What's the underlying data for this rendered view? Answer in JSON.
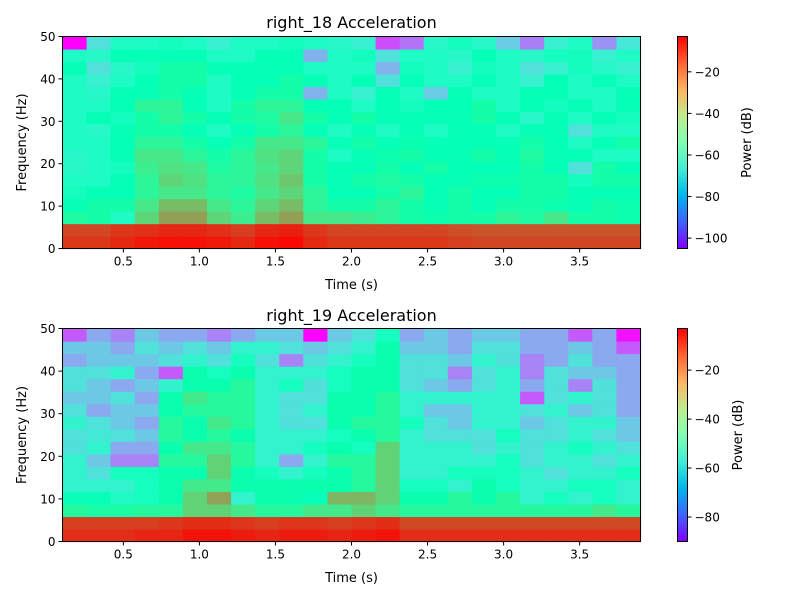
{
  "chart_data": [
    {
      "type": "heatmap",
      "title": "right_18 Acceleration",
      "xlabel": "Time (s)",
      "ylabel": "Frequency (Hz)",
      "xlim": [
        0.1,
        3.9
      ],
      "ylim": [
        0,
        50
      ],
      "x_ticks": [
        0.5,
        1.0,
        1.5,
        2.0,
        2.5,
        3.0,
        3.5
      ],
      "x_tick_labels": [
        "0.5",
        "1.0",
        "1.5",
        "2.0",
        "2.5",
        "3.0",
        "3.5"
      ],
      "y_ticks": [
        0,
        10,
        20,
        30,
        40,
        50
      ],
      "y_tick_labels": [
        "0",
        "10",
        "20",
        "30",
        "40",
        "50"
      ],
      "colorbar": {
        "label": "Power (dB)",
        "range": [
          -105,
          -3
        ],
        "ticks": [
          -20,
          -40,
          -60,
          -80,
          -100
        ],
        "tick_labels": [
          "−20",
          "−40",
          "−60",
          "−80",
          "−100"
        ]
      },
      "colormap": "rainbow",
      "grid": false,
      "time_bins": 24,
      "freq_bins": 17,
      "values_db_rows_low_to_high_freq": [
        [
          -10,
          -10,
          -8,
          -6,
          -5,
          -5,
          -6,
          -8,
          -5,
          -4,
          -8,
          -10,
          -10,
          -10,
          -10,
          -10,
          -11,
          -12,
          -12,
          -12,
          -12,
          -12,
          -12,
          -12
        ],
        [
          -12,
          -12,
          -10,
          -9,
          -8,
          -8,
          -9,
          -11,
          -8,
          -7,
          -10,
          -12,
          -12,
          -12,
          -12,
          -12,
          -13,
          -14,
          -14,
          -14,
          -14,
          -14,
          -14,
          -14
        ],
        [
          -48,
          -50,
          -60,
          -35,
          -25,
          -25,
          -35,
          -42,
          -30,
          -25,
          -40,
          -40,
          -42,
          -45,
          -50,
          -52,
          -50,
          -50,
          -45,
          -48,
          -40,
          -50,
          -50,
          -52
        ],
        [
          -55,
          -50,
          -50,
          -40,
          -30,
          -30,
          -40,
          -45,
          -35,
          -30,
          -45,
          -50,
          -50,
          -45,
          -50,
          -55,
          -50,
          -55,
          -50,
          -50,
          -52,
          -55,
          -50,
          -52
        ],
        [
          -58,
          -55,
          -55,
          -45,
          -40,
          -40,
          -45,
          -48,
          -40,
          -35,
          -45,
          -55,
          -55,
          -50,
          -45,
          -55,
          -50,
          -55,
          -55,
          -50,
          -50,
          -55,
          -55,
          -55
        ],
        [
          -60,
          -60,
          -55,
          -45,
          -35,
          -38,
          -45,
          -45,
          -38,
          -32,
          -50,
          -55,
          -50,
          -48,
          -50,
          -55,
          -55,
          -52,
          -52,
          -50,
          -50,
          -58,
          -50,
          -50
        ],
        [
          -62,
          -60,
          -58,
          -42,
          -38,
          -40,
          -48,
          -45,
          -40,
          -35,
          -50,
          -55,
          -55,
          -50,
          -55,
          -50,
          -55,
          -55,
          -55,
          -50,
          -55,
          -70,
          -50,
          -55
        ],
        [
          -62,
          -60,
          -55,
          -40,
          -40,
          -45,
          -50,
          -45,
          -38,
          -35,
          -50,
          -60,
          -55,
          -52,
          -50,
          -55,
          -55,
          -50,
          -55,
          -48,
          -55,
          -55,
          -60,
          -60
        ],
        [
          -60,
          -60,
          -55,
          -45,
          -45,
          -50,
          -55,
          -50,
          -40,
          -40,
          -45,
          -55,
          -50,
          -55,
          -52,
          -55,
          -55,
          -55,
          -55,
          -50,
          -55,
          -60,
          -55,
          -50
        ],
        [
          -60,
          -62,
          -55,
          -50,
          -50,
          -55,
          -60,
          -55,
          -50,
          -45,
          -55,
          -60,
          -55,
          -60,
          -55,
          -60,
          -55,
          -55,
          -60,
          -55,
          -55,
          -70,
          -60,
          -60
        ],
        [
          -60,
          -55,
          -58,
          -50,
          -45,
          -50,
          -55,
          -50,
          -48,
          -40,
          -50,
          -55,
          -50,
          -55,
          -55,
          -55,
          -55,
          -50,
          -55,
          -62,
          -55,
          -60,
          -55,
          -58
        ],
        [
          -60,
          -60,
          -55,
          -45,
          -45,
          -55,
          -60,
          -50,
          -45,
          -45,
          -55,
          -55,
          -60,
          -55,
          -58,
          -55,
          -55,
          -50,
          -60,
          -55,
          -58,
          -55,
          -60,
          -55
        ],
        [
          -60,
          -62,
          -55,
          -55,
          -50,
          -55,
          -60,
          -55,
          -50,
          -50,
          -80,
          -60,
          -65,
          -55,
          -60,
          -75,
          -55,
          -60,
          -60,
          -55,
          -55,
          -60,
          -60,
          -55
        ],
        [
          -60,
          -65,
          -60,
          -55,
          -50,
          -50,
          -60,
          -55,
          -55,
          -50,
          -55,
          -60,
          -55,
          -70,
          -55,
          -60,
          -60,
          -55,
          -60,
          -65,
          -55,
          -60,
          -55,
          -60
        ],
        [
          -55,
          -70,
          -62,
          -58,
          -50,
          -50,
          -55,
          -55,
          -55,
          -55,
          -60,
          -60,
          -60,
          -80,
          -58,
          -60,
          -65,
          -58,
          -60,
          -70,
          -65,
          -58,
          -62,
          -65
        ],
        [
          -60,
          -62,
          -55,
          -55,
          -55,
          -55,
          -60,
          -60,
          -55,
          -55,
          -80,
          -60,
          -58,
          -70,
          -60,
          -60,
          -62,
          -55,
          -60,
          -62,
          -58,
          -58,
          -65,
          -60
        ],
        [
          -105,
          -70,
          -60,
          -60,
          -58,
          -60,
          -65,
          -60,
          -60,
          -58,
          -60,
          -62,
          -65,
          -95,
          -90,
          -62,
          -58,
          -62,
          -75,
          -88,
          -65,
          -60,
          -85,
          -68
        ]
      ]
    },
    {
      "type": "heatmap",
      "title": "right_19 Acceleration",
      "xlabel": "Time (s)",
      "ylabel": "Frequency (Hz)",
      "xlim": [
        0.1,
        3.9
      ],
      "ylim": [
        0,
        50
      ],
      "x_ticks": [
        0.5,
        1.0,
        1.5,
        2.0,
        2.5,
        3.0,
        3.5
      ],
      "x_tick_labels": [
        "0.5",
        "1.0",
        "1.5",
        "2.0",
        "2.5",
        "3.0",
        "3.5"
      ],
      "y_ticks": [
        0,
        10,
        20,
        30,
        40,
        50
      ],
      "y_tick_labels": [
        "0",
        "10",
        "20",
        "30",
        "40",
        "50"
      ],
      "colorbar": {
        "label": "Power (dB)",
        "range": [
          -90,
          -3
        ],
        "ticks": [
          -20,
          -40,
          -60,
          -80
        ],
        "tick_labels": [
          "−20",
          "−40",
          "−60",
          "−80"
        ]
      },
      "colormap": "rainbow",
      "grid": false,
      "time_bins": 24,
      "freq_bins": 17,
      "values_db_rows_low_to_high_freq": [
        [
          -8,
          -8,
          -8,
          -7,
          -7,
          -5,
          -5,
          -6,
          -7,
          -6,
          -6,
          -7,
          -6,
          -5,
          -8,
          -8,
          -8,
          -8,
          -8,
          -8,
          -8,
          -8,
          -8,
          -8
        ],
        [
          -10,
          -10,
          -10,
          -10,
          -9,
          -8,
          -8,
          -9,
          -10,
          -9,
          -9,
          -10,
          -9,
          -8,
          -11,
          -11,
          -11,
          -11,
          -11,
          -11,
          -11,
          -11,
          -11,
          -11
        ],
        [
          -40,
          -42,
          -42,
          -40,
          -40,
          -30,
          -30,
          -35,
          -40,
          -40,
          -35,
          -35,
          -30,
          -35,
          -40,
          -40,
          -40,
          -40,
          -40,
          -40,
          -40,
          -40,
          -35,
          -40
        ],
        [
          -48,
          -48,
          -52,
          -50,
          -45,
          -30,
          -22,
          -55,
          -45,
          -45,
          -48,
          -25,
          -25,
          -30,
          -45,
          -45,
          -40,
          -45,
          -40,
          -55,
          -50,
          -55,
          -50,
          -55
        ],
        [
          -55,
          -55,
          -55,
          -50,
          -45,
          -35,
          -35,
          -45,
          -45,
          -45,
          -45,
          -45,
          -40,
          -30,
          -50,
          -50,
          -55,
          -45,
          -50,
          -55,
          -55,
          -50,
          -50,
          -55
        ],
        [
          -55,
          -60,
          -50,
          -50,
          -45,
          -45,
          -30,
          -45,
          -50,
          -55,
          -50,
          -45,
          -40,
          -30,
          -55,
          -55,
          -50,
          -50,
          -50,
          -55,
          -60,
          -55,
          -55,
          -50
        ],
        [
          -55,
          -65,
          -75,
          -75,
          -40,
          -40,
          -30,
          -40,
          -55,
          -70,
          -55,
          -40,
          -40,
          -30,
          -55,
          -55,
          -55,
          -55,
          -50,
          -60,
          -55,
          -55,
          -60,
          -55
        ],
        [
          -60,
          -55,
          -70,
          -70,
          -45,
          -35,
          -35,
          -40,
          -55,
          -55,
          -50,
          -45,
          -50,
          -30,
          -55,
          -55,
          -55,
          -60,
          -55,
          -60,
          -55,
          -50,
          -55,
          -60
        ],
        [
          -60,
          -58,
          -60,
          -65,
          -40,
          -45,
          -40,
          -45,
          -55,
          -55,
          -55,
          -50,
          -45,
          -40,
          -55,
          -60,
          -60,
          -60,
          -50,
          -60,
          -60,
          -55,
          -60,
          -65
        ],
        [
          -55,
          -60,
          -65,
          -70,
          -40,
          -45,
          -35,
          -40,
          -55,
          -60,
          -60,
          -45,
          -40,
          -40,
          -50,
          -60,
          -65,
          -55,
          -55,
          -65,
          -60,
          -55,
          -55,
          -65
        ],
        [
          -60,
          -70,
          -65,
          -65,
          -45,
          -40,
          -40,
          -40,
          -55,
          -60,
          -55,
          -45,
          -45,
          -40,
          -55,
          -65,
          -65,
          -55,
          -55,
          -60,
          -55,
          -65,
          -60,
          -70
        ],
        [
          -65,
          -65,
          -60,
          -70,
          -45,
          -35,
          -40,
          -40,
          -55,
          -60,
          -60,
          -45,
          -45,
          -40,
          -55,
          -55,
          -55,
          -55,
          -55,
          -80,
          -60,
          -55,
          -60,
          -70
        ],
        [
          -60,
          -65,
          -70,
          -65,
          -55,
          -45,
          -45,
          -40,
          -55,
          -50,
          -60,
          -50,
          -45,
          -45,
          -60,
          -65,
          -70,
          -60,
          -55,
          -70,
          -60,
          -75,
          -60,
          -70
        ],
        [
          -60,
          -60,
          -55,
          -70,
          -80,
          -45,
          -50,
          -45,
          -55,
          -55,
          -55,
          -50,
          -45,
          -45,
          -60,
          -60,
          -75,
          -60,
          -55,
          -75,
          -60,
          -65,
          -65,
          -70
        ],
        [
          -70,
          -65,
          -65,
          -65,
          -60,
          -55,
          -60,
          -50,
          -60,
          -75,
          -60,
          -55,
          -50,
          -45,
          -60,
          -60,
          -65,
          -55,
          -60,
          -75,
          -70,
          -60,
          -70,
          -70
        ],
        [
          -65,
          -65,
          -70,
          -60,
          -65,
          -60,
          -65,
          -55,
          -55,
          -60,
          -65,
          -60,
          -55,
          -45,
          -65,
          -65,
          -70,
          -60,
          -60,
          -70,
          -70,
          -65,
          -70,
          -80
        ],
        [
          -80,
          -70,
          -75,
          -65,
          -70,
          -70,
          -75,
          -70,
          -65,
          -65,
          -90,
          -65,
          -60,
          -50,
          -70,
          -65,
          -70,
          -65,
          -65,
          -70,
          -70,
          -80,
          -70,
          -88
        ]
      ]
    }
  ]
}
